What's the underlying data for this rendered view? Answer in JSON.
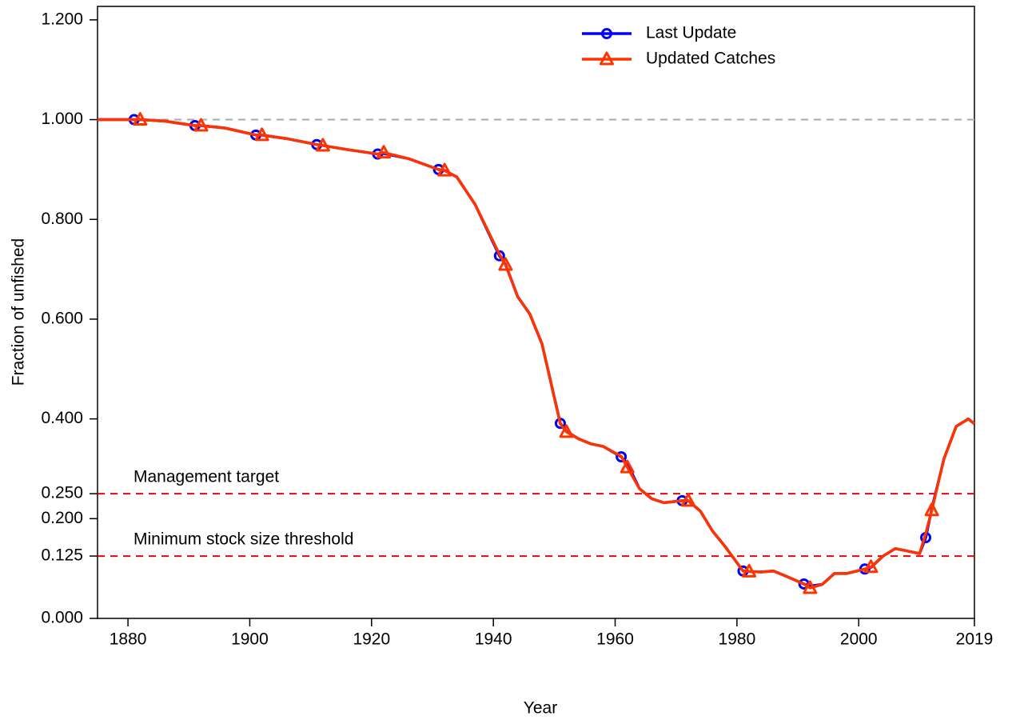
{
  "chart_data": {
    "type": "line",
    "xlabel": "Year",
    "ylabel": "Fraction of unfished",
    "x": [
      1875,
      1881,
      1882,
      1886,
      1891,
      1892,
      1896,
      1901,
      1902,
      1906,
      1911,
      1912,
      1916,
      1921,
      1922,
      1926,
      1931,
      1932,
      1934,
      1937,
      1941,
      1942,
      1944,
      1946,
      1948,
      1951,
      1952,
      1954,
      1956,
      1958,
      1961,
      1962,
      1964,
      1966,
      1968,
      1971,
      1972,
      1974,
      1976,
      1978,
      1981,
      1982,
      1984,
      1986,
      1988,
      1991,
      1992,
      1994,
      1996,
      1998,
      2001,
      2002,
      2004,
      2006,
      2008,
      2010,
      2011,
      2012,
      2014,
      2016,
      2018,
      2019
    ],
    "series": [
      {
        "name": "Last Update",
        "color": "#0000ee",
        "marker": "circle",
        "marker_x": [
          1881,
          1891,
          1901,
          1911,
          1921,
          1931,
          1941,
          1951,
          1961,
          1971,
          1981,
          1991,
          2001,
          2011
        ],
        "values": [
          1.0,
          1.0,
          1.0,
          0.997,
          0.988,
          0.988,
          0.983,
          0.969,
          0.969,
          0.962,
          0.95,
          0.948,
          0.94,
          0.931,
          0.932,
          0.922,
          0.9,
          0.898,
          0.885,
          0.83,
          0.727,
          0.71,
          0.645,
          0.61,
          0.55,
          0.391,
          0.375,
          0.36,
          0.35,
          0.345,
          0.324,
          0.31,
          0.26,
          0.24,
          0.232,
          0.236,
          0.236,
          0.215,
          0.175,
          0.145,
          0.095,
          0.094,
          0.093,
          0.095,
          0.085,
          0.069,
          0.065,
          0.068,
          0.09,
          0.09,
          0.099,
          0.102,
          0.125,
          0.14,
          0.135,
          0.13,
          0.162,
          0.22,
          0.32,
          0.385,
          0.4,
          0.39
        ]
      },
      {
        "name": "Updated Catches",
        "color": "#ff3300",
        "marker": "triangle",
        "marker_x": [
          1882,
          1892,
          1902,
          1912,
          1922,
          1932,
          1942,
          1952,
          1962,
          1972,
          1982,
          1992,
          2002,
          2012
        ],
        "values": [
          1.0,
          1.0,
          1.0,
          0.997,
          0.988,
          0.988,
          0.983,
          0.969,
          0.969,
          0.962,
          0.95,
          0.948,
          0.94,
          0.931,
          0.934,
          0.922,
          0.9,
          0.898,
          0.885,
          0.83,
          0.73,
          0.709,
          0.645,
          0.61,
          0.55,
          0.39,
          0.374,
          0.36,
          0.35,
          0.345,
          0.325,
          0.303,
          0.26,
          0.24,
          0.232,
          0.236,
          0.236,
          0.215,
          0.175,
          0.145,
          0.095,
          0.094,
          0.093,
          0.095,
          0.085,
          0.069,
          0.061,
          0.068,
          0.09,
          0.09,
          0.099,
          0.103,
          0.125,
          0.14,
          0.135,
          0.13,
          0.17,
          0.217,
          0.32,
          0.385,
          0.4,
          0.39
        ]
      }
    ],
    "hlines": [
      {
        "value": 1.0,
        "color": "#aaaaaa"
      },
      {
        "value": 0.25,
        "color": "#ee0000",
        "label": "Management target"
      },
      {
        "value": 0.125,
        "color": "#ee0000",
        "label": "Minimum stock size threshold"
      }
    ],
    "xlim": [
      1875,
      2019
    ],
    "xticks": [
      1880,
      1900,
      1920,
      1940,
      1960,
      1980,
      2000,
      2019
    ],
    "ylim": [
      0,
      1.227
    ],
    "yticks": [
      {
        "value": 0,
        "label": "0.000"
      },
      {
        "value": 0.125,
        "label": "0.125"
      },
      {
        "value": 0.2,
        "label": "0.200"
      },
      {
        "value": 0.25,
        "label": "0.250"
      },
      {
        "value": 0.4,
        "label": "0.400"
      },
      {
        "value": 0.6,
        "label": "0.600"
      },
      {
        "value": 0.8,
        "label": "0.800"
      },
      {
        "value": 1.0,
        "label": "1.000"
      },
      {
        "value": 1.2,
        "label": "1.200"
      }
    ],
    "legend": "top"
  }
}
